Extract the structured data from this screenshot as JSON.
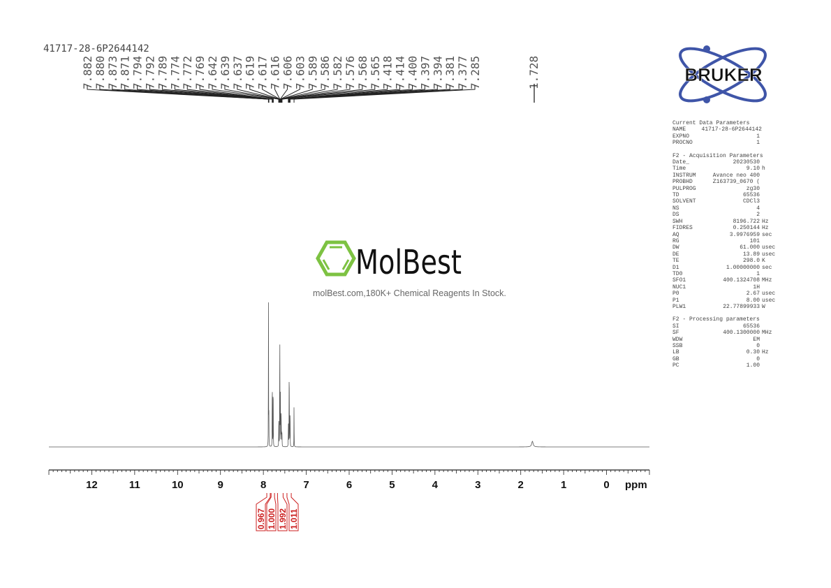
{
  "sample_id": "41717-28-6P2644142",
  "brand": {
    "bruker": "BRUKER",
    "molbest": "MolBest",
    "molbest_tagline": "molBest.com,180K+ Chemical Reagents In Stock.",
    "molbest_green": "#7dc242",
    "bruker_blue": "#3f55a8"
  },
  "chart_data": {
    "type": "line",
    "xlabel": "ppm",
    "xlim": [
      13,
      -1
    ],
    "x_ticks": [
      "12",
      "11",
      "10",
      "9",
      "8",
      "7",
      "6",
      "5",
      "4",
      "3",
      "2",
      "1",
      "0"
    ],
    "grid": false,
    "peak_labels": [
      "7.882",
      "7.880",
      "7.873",
      "7.871",
      "7.794",
      "7.792",
      "7.789",
      "7.774",
      "7.772",
      "7.769",
      "7.642",
      "7.639",
      "7.637",
      "7.619",
      "7.617",
      "7.616",
      "7.606",
      "7.603",
      "7.589",
      "7.586",
      "7.582",
      "7.576",
      "7.568",
      "7.565",
      "7.418",
      "7.414",
      "7.400",
      "7.397",
      "7.394",
      "7.381",
      "7.377",
      "7.285",
      "1.728"
    ],
    "peaks": [
      {
        "ppm": 7.882,
        "intensity": 0.52
      },
      {
        "ppm": 7.88,
        "intensity": 0.5
      },
      {
        "ppm": 7.873,
        "intensity": 0.1
      },
      {
        "ppm": 7.871,
        "intensity": 0.1
      },
      {
        "ppm": 7.794,
        "intensity": 0.2
      },
      {
        "ppm": 7.792,
        "intensity": 0.22
      },
      {
        "ppm": 7.789,
        "intensity": 0.18
      },
      {
        "ppm": 7.774,
        "intensity": 0.18
      },
      {
        "ppm": 7.772,
        "intensity": 0.2
      },
      {
        "ppm": 7.769,
        "intensity": 0.16
      },
      {
        "ppm": 7.642,
        "intensity": 0.08
      },
      {
        "ppm": 7.639,
        "intensity": 0.1
      },
      {
        "ppm": 7.637,
        "intensity": 0.08
      },
      {
        "ppm": 7.619,
        "intensity": 0.26
      },
      {
        "ppm": 7.617,
        "intensity": 0.3
      },
      {
        "ppm": 7.616,
        "intensity": 0.28
      },
      {
        "ppm": 7.606,
        "intensity": 0.2
      },
      {
        "ppm": 7.603,
        "intensity": 0.22
      },
      {
        "ppm": 7.589,
        "intensity": 0.12
      },
      {
        "ppm": 7.586,
        "intensity": 0.14
      },
      {
        "ppm": 7.582,
        "intensity": 0.1
      },
      {
        "ppm": 7.576,
        "intensity": 0.08
      },
      {
        "ppm": 7.568,
        "intensity": 0.06
      },
      {
        "ppm": 7.565,
        "intensity": 0.05
      },
      {
        "ppm": 7.418,
        "intensity": 0.12
      },
      {
        "ppm": 7.414,
        "intensity": 0.14
      },
      {
        "ppm": 7.4,
        "intensity": 0.26
      },
      {
        "ppm": 7.397,
        "intensity": 0.24
      },
      {
        "ppm": 7.394,
        "intensity": 0.18
      },
      {
        "ppm": 7.381,
        "intensity": 0.16
      },
      {
        "ppm": 7.377,
        "intensity": 0.18
      },
      {
        "ppm": 7.285,
        "intensity": 0.28
      },
      {
        "ppm": 1.728,
        "intensity": 0.03,
        "broad": true
      }
    ],
    "integrals": [
      {
        "from": 7.92,
        "to": 7.84,
        "value": "0.967"
      },
      {
        "from": 7.82,
        "to": 7.74,
        "value": "1.000"
      },
      {
        "from": 7.67,
        "to": 7.54,
        "value": "1.992"
      },
      {
        "from": 7.45,
        "to": 7.35,
        "value": "1.011"
      }
    ],
    "integral_color": "#cc1f1f"
  },
  "params": {
    "sections": [
      {
        "title": "Current Data Parameters",
        "rows": [
          [
            "NAME",
            "41717-28-6P2644142",
            ""
          ],
          [
            "EXPNO",
            "1",
            ""
          ],
          [
            "PROCNO",
            "1",
            ""
          ]
        ]
      },
      {
        "title": "F2 - Acquisition Parameters",
        "rows": [
          [
            "Date_",
            "20230530",
            ""
          ],
          [
            "Time",
            "9.10",
            "h"
          ],
          [
            "INSTRUM",
            "Avance neo 400",
            ""
          ],
          [
            "PROBHD",
            "Z163739_0670 (",
            ""
          ],
          [
            "PULPROG",
            "zg30",
            ""
          ],
          [
            "TD",
            "65536",
            ""
          ],
          [
            "SOLVENT",
            "CDCl3",
            ""
          ],
          [
            "NS",
            "4",
            ""
          ],
          [
            "DS",
            "2",
            ""
          ],
          [
            "SWH",
            "8196.722",
            "Hz"
          ],
          [
            "FIDRES",
            "0.250144",
            "Hz"
          ],
          [
            "AQ",
            "3.9976959",
            "sec"
          ],
          [
            "RG",
            "101",
            ""
          ],
          [
            "DW",
            "61.000",
            "usec"
          ],
          [
            "DE",
            "13.89",
            "usec"
          ],
          [
            "TE",
            "298.0",
            "K"
          ],
          [
            "D1",
            "1.00000000",
            "sec"
          ],
          [
            "TD0",
            "1",
            ""
          ],
          [
            "SFO1",
            "400.1324708",
            "MHz"
          ],
          [
            "NUC1",
            "1H",
            ""
          ],
          [
            "P0",
            "2.67",
            "usec"
          ],
          [
            "P1",
            "8.00",
            "usec"
          ],
          [
            "PLW1",
            "22.77899933",
            "W"
          ]
        ]
      },
      {
        "title": "F2 - Processing parameters",
        "rows": [
          [
            "SI",
            "65536",
            ""
          ],
          [
            "SF",
            "400.1300000",
            "MHz"
          ],
          [
            "WDW",
            "EM",
            ""
          ],
          [
            "SSB",
            "0",
            ""
          ],
          [
            "LB",
            "0.30",
            "Hz"
          ],
          [
            "GB",
            "0",
            ""
          ],
          [
            "PC",
            "1.00",
            ""
          ]
        ]
      }
    ]
  }
}
